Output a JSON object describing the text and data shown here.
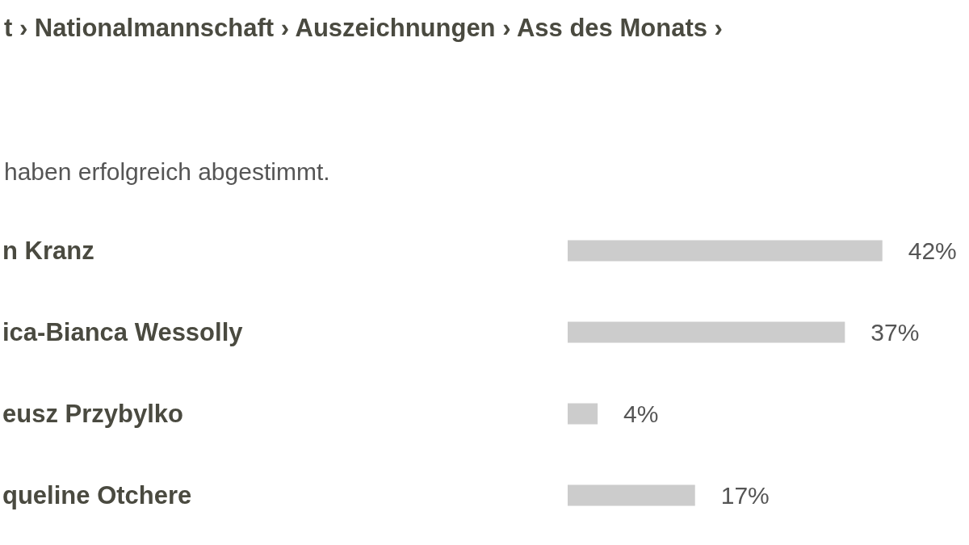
{
  "chart_data": {
    "type": "bar",
    "orientation": "horizontal",
    "title": "t › Nationalmannschaft › Auszeichnungen › Ass des Monats ›",
    "subtitle": "haben erfolgreich abgestimmt.",
    "categories": [
      "n Kranz",
      "ica-Bianca Wessolly",
      "eusz Przybylko",
      "queline Otchere"
    ],
    "values": [
      42,
      37,
      4,
      17
    ],
    "color": "#cccccc",
    "value_labels": [
      "42%",
      "37%",
      "4%",
      "17%"
    ]
  }
}
